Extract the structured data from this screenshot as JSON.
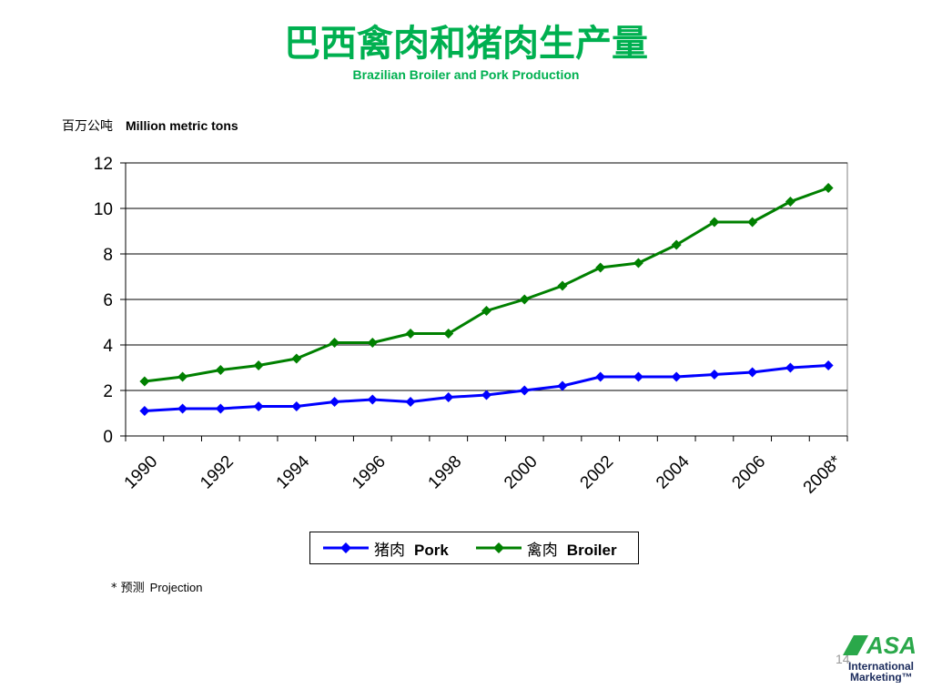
{
  "slide": {
    "title_cn": "巴西禽肉和猪肉生产量",
    "title_en": "Brazilian Broiler and Pork Production",
    "units_cn": "百万公吨",
    "units_en": "Million metric tons",
    "footnote_mark": "*",
    "footnote_cn": "预测",
    "footnote_en": "Projection",
    "page_number": "14",
    "logo": {
      "name": "asa-logo",
      "text_big": "ASA",
      "text_line1": "International",
      "text_line2": "Marketing™",
      "color_green": "#2aa84a",
      "color_navy": "#1b2b5c"
    },
    "colors": {
      "title": "#00b050"
    }
  },
  "chart_data": {
    "type": "line",
    "x": [
      "1990",
      "1991",
      "1992",
      "1993",
      "1994",
      "1995",
      "1996",
      "1997",
      "1998",
      "1999",
      "2000",
      "2001",
      "2002",
      "2003",
      "2004",
      "2005",
      "2006",
      "2007",
      "2008*"
    ],
    "tick_labels": [
      "1990",
      "1992",
      "1994",
      "1996",
      "1998",
      "2000",
      "2002",
      "2004",
      "2006",
      "2008*"
    ],
    "ylim": [
      0,
      12
    ],
    "yticks": [
      0,
      2,
      4,
      6,
      8,
      10,
      12
    ],
    "grid": true,
    "legend_position": "bottom",
    "series": [
      {
        "name_cn": "猪肉",
        "name_en": "Pork",
        "color": "#0000ff",
        "marker": "diamond",
        "values": [
          1.1,
          1.2,
          1.2,
          1.3,
          1.3,
          1.5,
          1.6,
          1.5,
          1.7,
          1.8,
          2.0,
          2.2,
          2.6,
          2.6,
          2.6,
          2.7,
          2.8,
          3.0,
          3.1
        ]
      },
      {
        "name_cn": "禽肉",
        "name_en": "Broiler",
        "color": "#008000",
        "marker": "diamond",
        "values": [
          2.4,
          2.6,
          2.9,
          3.1,
          3.4,
          4.1,
          4.1,
          4.5,
          4.5,
          5.5,
          6.0,
          6.6,
          7.4,
          7.6,
          8.4,
          9.4,
          9.4,
          10.3,
          10.9
        ]
      }
    ]
  }
}
